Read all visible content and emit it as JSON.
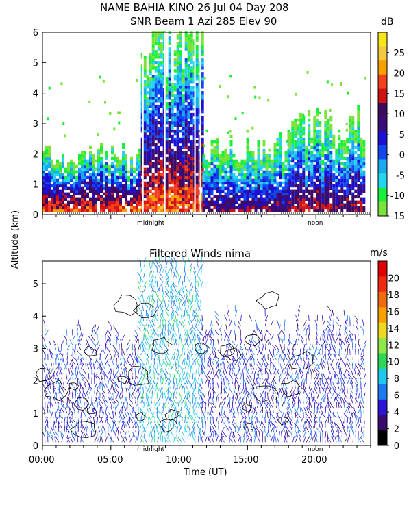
{
  "header": {
    "title_line1": "NAME BAHIA KINO  26 Jul 04 Day 208",
    "title_line2": "SNR Beam 1 Azi 285 Elev 90"
  },
  "shared_axis": {
    "ylabel": "Altitude (km)",
    "xlabel": "Time (UT)",
    "x_ticks": [
      "00:00",
      "05:00",
      "10:00",
      "15:00",
      "20:00"
    ],
    "markers": [
      "midnight",
      "noon"
    ]
  },
  "colors": {
    "snr_scale": [
      "#7be23b",
      "#19f03a",
      "#24d6ee",
      "#1aa9ee",
      "#1247f0",
      "#1d0fd5",
      "#3b0d7a",
      "#3d0a5e",
      "#d01212",
      "#f43f1e",
      "#f7a000",
      "#f5c842",
      "#f7e61a"
    ],
    "wind_scale": [
      "#000000",
      "#3a0a70",
      "#2a14d6",
      "#1c7af0",
      "#1ec9f0",
      "#2bd85a",
      "#8ee84a",
      "#f0d820",
      "#f7a000",
      "#f06a10",
      "#ef2a10",
      "#e00000"
    ]
  },
  "chart_data": [
    {
      "type": "heatmap",
      "title": "SNR Beam 1 Azi 285 Elev 90",
      "xlabel": "Time (UT)",
      "ylabel": "Altitude (km)",
      "xlim": [
        0,
        24
      ],
      "ylim": [
        0,
        6
      ],
      "y_ticks": [
        0,
        1,
        2,
        3,
        4,
        5,
        6
      ],
      "colorbar": {
        "unit": "dB",
        "ticks": [
          25,
          20,
          15,
          10,
          5,
          0,
          -5,
          -10,
          -15
        ],
        "range": [
          -15,
          30
        ]
      },
      "regions": [
        {
          "t0": 0.0,
          "t1": 7.2,
          "top_km": 2.0,
          "peak_db": 20
        },
        {
          "t0": 7.2,
          "t1": 11.7,
          "top_km": 6.0,
          "peak_db": 20
        },
        {
          "t0": 11.7,
          "t1": 18.0,
          "top_km": 2.3,
          "peak_db": 12
        },
        {
          "t0": 18.0,
          "t1": 23.5,
          "top_km": 3.0,
          "peak_db": 14
        }
      ]
    },
    {
      "type": "scatter",
      "title": "Filtered Winds nima",
      "xlabel": "Time (UT)",
      "ylabel": "Altitude (km)",
      "xlim": [
        0,
        24
      ],
      "ylim": [
        0,
        5.7
      ],
      "y_ticks": [
        0,
        1,
        2,
        3,
        4,
        5
      ],
      "colorbar": {
        "unit": "m/s",
        "ticks": [
          20,
          18,
          16,
          14,
          12,
          10,
          8,
          6,
          4,
          2,
          0
        ],
        "range": [
          0,
          22
        ]
      },
      "wind_regions": [
        {
          "t0": 0.2,
          "t1": 7.2,
          "top_km": 3.2,
          "speed_ms": 4
        },
        {
          "t0": 7.2,
          "t1": 11.7,
          "top_km": 5.6,
          "speed_ms": 7
        },
        {
          "t0": 11.7,
          "t1": 23.5,
          "top_km": 3.5,
          "speed_ms": 4
        }
      ]
    }
  ]
}
